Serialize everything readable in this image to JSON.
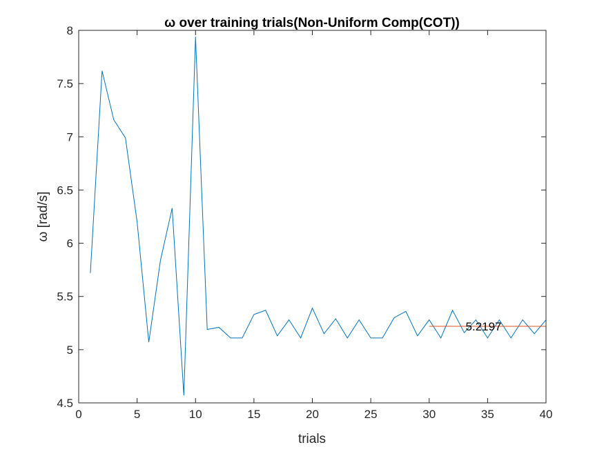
{
  "chart_data": {
    "type": "line",
    "title": "ω over training trials(Non-Uniform Comp(COT))",
    "xlabel": "trials",
    "ylabel": "ω [rad/s]",
    "xlim": [
      0,
      40
    ],
    "ylim": [
      4.5,
      8
    ],
    "xticks": [
      0,
      5,
      10,
      15,
      20,
      25,
      30,
      35,
      40
    ],
    "yticks": [
      4.5,
      5,
      5.5,
      6,
      6.5,
      7,
      7.5,
      8
    ],
    "xtick_labels": [
      "0",
      "5",
      "10",
      "15",
      "20",
      "25",
      "30",
      "35",
      "40"
    ],
    "ytick_labels": [
      "4.5",
      "5",
      "5.5",
      "6",
      "6.5",
      "7",
      "7.5",
      "8"
    ],
    "grid": false,
    "series": [
      {
        "color": "#0072BD",
        "x": [
          1,
          2,
          3,
          4,
          5,
          6,
          7,
          8,
          9,
          10,
          11,
          12,
          13,
          14,
          15,
          16,
          17,
          18,
          19,
          20,
          21,
          22,
          23,
          24,
          25,
          26,
          27,
          28,
          29,
          30,
          31,
          32,
          33,
          34,
          35,
          36,
          37,
          38,
          39,
          40
        ],
        "y": [
          5.72,
          7.62,
          7.16,
          6.99,
          6.2,
          5.07,
          5.84,
          6.33,
          4.57,
          7.94,
          5.19,
          5.21,
          5.11,
          5.11,
          5.33,
          5.37,
          5.13,
          5.28,
          5.11,
          5.39,
          5.15,
          5.29,
          5.11,
          5.28,
          5.11,
          5.11,
          5.3,
          5.36,
          5.13,
          5.28,
          5.11,
          5.37,
          5.16,
          5.28,
          5.11,
          5.28,
          5.11,
          5.28,
          5.15,
          5.28
        ]
      }
    ],
    "reference_line": {
      "color": "#D95319",
      "x": [
        30,
        40
      ],
      "y": 5.2197
    },
    "annotation": {
      "text": "5.2197",
      "x": 33,
      "y": 5.2197
    }
  }
}
